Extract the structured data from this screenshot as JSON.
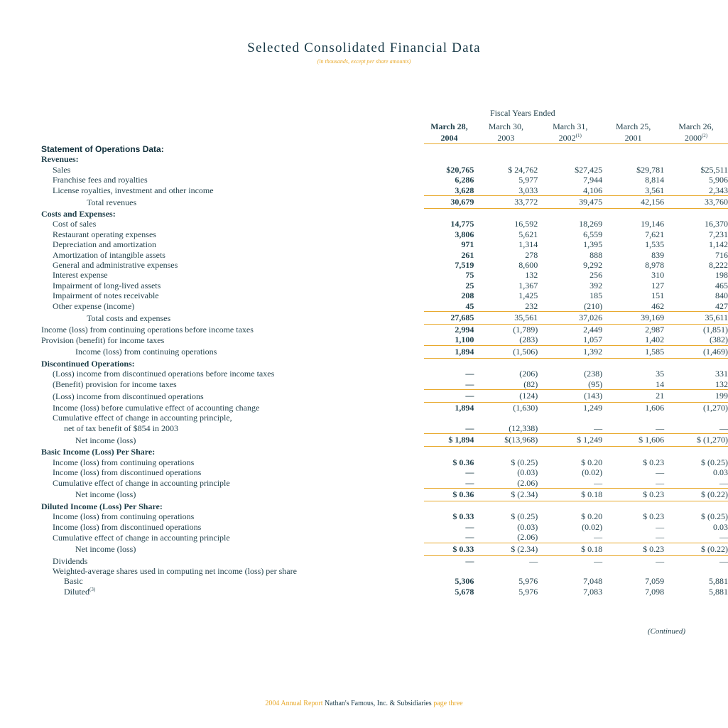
{
  "title": "Selected Consolidated Financial Data",
  "subtitle": "(in thousands, except per share amounts)",
  "fiscal_years_label": "Fiscal Years Ended",
  "columns": [
    {
      "line1": "March 28,",
      "line2": "2004",
      "note": ""
    },
    {
      "line1": "March 30,",
      "line2": "2003",
      "note": ""
    },
    {
      "line1": "March 31,",
      "line2": "2002",
      "note": "(1)"
    },
    {
      "line1": "March 25,",
      "line2": "2001",
      "note": ""
    },
    {
      "line1": "March 26,",
      "line2": "2000",
      "note": "(2)"
    }
  ],
  "rows": [
    {
      "type": "sec",
      "label": "Statement of Operations Data:",
      "indent": 0
    },
    {
      "type": "sub",
      "label": "Revenues:",
      "indent": 0
    },
    {
      "type": "row",
      "label": "Sales",
      "indent": 1,
      "v": [
        "$20,765",
        "$ 24,762",
        "$27,425",
        "$29,781",
        "$25,511"
      ]
    },
    {
      "type": "row",
      "label": "Franchise fees and royalties",
      "indent": 1,
      "v": [
        "6,286",
        "5,977",
        "7,944",
        "8,814",
        "5,906"
      ]
    },
    {
      "type": "row",
      "label": "License royalties, investment and other income",
      "indent": 1,
      "v": [
        "3,628",
        "3,033",
        "4,106",
        "3,561",
        "2,343"
      ]
    },
    {
      "type": "total",
      "label": "Total revenues",
      "indent": 4,
      "v": [
        "30,679",
        "33,772",
        "39,475",
        "42,156",
        "33,760"
      ]
    },
    {
      "type": "sub",
      "label": "Costs and Expenses:",
      "indent": 0
    },
    {
      "type": "row",
      "label": "Cost of sales",
      "indent": 1,
      "v": [
        "14,775",
        "16,592",
        "18,269",
        "19,146",
        "16,370"
      ]
    },
    {
      "type": "row",
      "label": "Restaurant operating expenses",
      "indent": 1,
      "v": [
        "3,806",
        "5,621",
        "6,559",
        "7,621",
        "7,231"
      ]
    },
    {
      "type": "row",
      "label": "Depreciation and amortization",
      "indent": 1,
      "v": [
        "971",
        "1,314",
        "1,395",
        "1,535",
        "1,142"
      ]
    },
    {
      "type": "row",
      "label": "Amortization of intangible assets",
      "indent": 1,
      "v": [
        "261",
        "278",
        "888",
        "839",
        "716"
      ]
    },
    {
      "type": "row",
      "label": "General and administrative expenses",
      "indent": 1,
      "v": [
        "7,519",
        "8,600",
        "9,292",
        "8,978",
        "8,222"
      ]
    },
    {
      "type": "row",
      "label": "Interest expense",
      "indent": 1,
      "v": [
        "75",
        "132",
        "256",
        "310",
        "198"
      ]
    },
    {
      "type": "row",
      "label": "Impairment of long-lived assets",
      "indent": 1,
      "v": [
        "25",
        "1,367",
        "392",
        "127",
        "465"
      ]
    },
    {
      "type": "row",
      "label": "Impairment of notes receivable",
      "indent": 1,
      "v": [
        "208",
        "1,425",
        "185",
        "151",
        "840"
      ]
    },
    {
      "type": "row",
      "label": "Other expense (income)",
      "indent": 1,
      "v": [
        "45",
        "232",
        "(210)",
        "462",
        "427"
      ]
    },
    {
      "type": "total",
      "label": "Total costs and expenses",
      "indent": 4,
      "v": [
        "27,685",
        "35,561",
        "37,026",
        "39,169",
        "35,611"
      ]
    },
    {
      "type": "row",
      "label": "Income (loss) from continuing operations before income taxes",
      "indent": 0,
      "v": [
        "2,994",
        "(1,789)",
        "2,449",
        "2,987",
        "(1,851)"
      ]
    },
    {
      "type": "row",
      "label": "Provision (benefit) for income taxes",
      "indent": 0,
      "v": [
        "1,100",
        "(283)",
        "1,057",
        "1,402",
        "(382)"
      ]
    },
    {
      "type": "total",
      "label": "Income (loss) from continuing operations",
      "indent": 3,
      "v": [
        "1,894",
        "(1,506)",
        "1,392",
        "1,585",
        "(1,469)"
      ]
    },
    {
      "type": "sub",
      "label": "Discontinued Operations:",
      "indent": 0
    },
    {
      "type": "row",
      "label": "(Loss) income from discontinued operations before income taxes",
      "indent": 1,
      "v": [
        "—",
        "(206)",
        "(238)",
        "35",
        "331"
      ]
    },
    {
      "type": "row",
      "label": "(Benefit) provision for income taxes",
      "indent": 1,
      "v": [
        "—",
        "(82)",
        "(95)",
        "14",
        "132"
      ]
    },
    {
      "type": "total",
      "label": "(Loss) income from discontinued operations",
      "indent": 1,
      "v": [
        "—",
        "(124)",
        "(143)",
        "21",
        "199"
      ]
    },
    {
      "type": "row",
      "label": "Income (loss) before cumulative effect of accounting change",
      "indent": 1,
      "v": [
        "1,894",
        "(1,630)",
        "1,249",
        "1,606",
        "(1,270)"
      ]
    },
    {
      "type": "row",
      "label": "Cumulative effect of change in accounting principle,",
      "indent": 1,
      "v": [
        "",
        "",
        "",
        "",
        ""
      ]
    },
    {
      "type": "row",
      "label": "net of tax benefit of $854 in 2003",
      "indent": 2,
      "v": [
        "—",
        "(12,338)",
        "—",
        "—",
        "—"
      ]
    },
    {
      "type": "total",
      "label": "Net income (loss)",
      "indent": 3,
      "v": [
        "$ 1,894",
        "$(13,968)",
        "$ 1,249",
        "$ 1,606",
        "$ (1,270)"
      ]
    },
    {
      "type": "sub",
      "label": "Basic Income (Loss) Per Share:",
      "indent": 0
    },
    {
      "type": "row",
      "label": "Income (loss) from continuing operations",
      "indent": 1,
      "v": [
        "$ 0.36",
        "$ (0.25)",
        "$ 0.20",
        "$ 0.23",
        "$ (0.25)"
      ]
    },
    {
      "type": "row",
      "label": "Income (loss) from discontinued operations",
      "indent": 1,
      "v": [
        "—",
        "(0.03)",
        "(0.02)",
        "—",
        "0.03"
      ]
    },
    {
      "type": "row",
      "label": "Cumulative effect of change in accounting principle",
      "indent": 1,
      "v": [
        "—",
        "(2.06)",
        "—",
        "—",
        "—"
      ]
    },
    {
      "type": "total",
      "label": "Net income (loss)",
      "indent": 3,
      "v": [
        "$ 0.36",
        "$ (2.34)",
        "$ 0.18",
        "$ 0.23",
        "$ (0.22)"
      ]
    },
    {
      "type": "sub",
      "label": "Diluted Income (Loss) Per Share:",
      "indent": 0
    },
    {
      "type": "row",
      "label": "Income (loss) from continuing operations",
      "indent": 1,
      "v": [
        "$ 0.33",
        "$ (0.25)",
        "$ 0.20",
        "$ 0.23",
        "$ (0.25)"
      ]
    },
    {
      "type": "row",
      "label": "Income (loss) from discontinued operations",
      "indent": 1,
      "v": [
        "—",
        "(0.03)",
        "(0.02)",
        "—",
        "0.03"
      ]
    },
    {
      "type": "row",
      "label": "Cumulative effect of change in accounting principle",
      "indent": 1,
      "v": [
        "—",
        "(2.06)",
        "—",
        "—",
        "—"
      ]
    },
    {
      "type": "total",
      "label": "Net income (loss)",
      "indent": 3,
      "v": [
        "$ 0.33",
        "$ (2.34)",
        "$ 0.18",
        "$ 0.23",
        "$ (0.22)"
      ]
    },
    {
      "type": "row",
      "label": "Dividends",
      "indent": 1,
      "v": [
        "—",
        "—",
        "—",
        "—",
        "—"
      ]
    },
    {
      "type": "row",
      "label": "Weighted-average shares used in computing net income (loss) per share",
      "indent": 1,
      "v": [
        "",
        "",
        "",
        "",
        ""
      ]
    },
    {
      "type": "row",
      "label": "Basic",
      "indent": 2,
      "v": [
        "5,306",
        "5,976",
        "7,048",
        "7,059",
        "5,881"
      ]
    },
    {
      "type": "row",
      "label": "Diluted",
      "note": "(3)",
      "indent": 2,
      "v": [
        "5,678",
        "5,976",
        "7,083",
        "7,098",
        "5,881"
      ]
    }
  ],
  "continued": "(Continued)",
  "footer": {
    "report": "2004 Annual Report",
    "company": "Nathan's Famous, Inc. & Subsidiaries",
    "page": "page three"
  },
  "colors": {
    "accent": "#e8a92c",
    "text": "#1f3f4a"
  }
}
